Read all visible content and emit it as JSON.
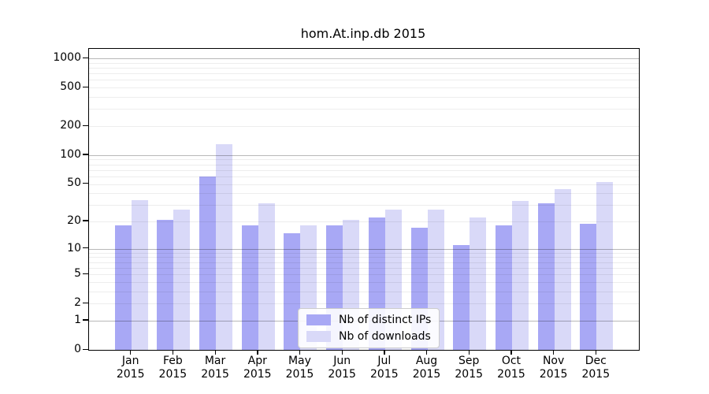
{
  "title": "hom.At.inp.db 2015",
  "chart_data": {
    "type": "bar",
    "title": "hom.At.inp.db 2015",
    "yscale": "log1p",
    "grid": "horizontal, major and minor",
    "legend_position": "lower center",
    "x_months": [
      "Jan",
      "Feb",
      "Mar",
      "Apr",
      "May",
      "Jun",
      "Jul",
      "Aug",
      "Sep",
      "Oct",
      "Nov",
      "Dec"
    ],
    "x_year": "2015",
    "ytick_values": [
      1000,
      500,
      200,
      100,
      50,
      20,
      10,
      5,
      2,
      1,
      0
    ],
    "ylim": [
      0,
      1250
    ],
    "series": [
      {
        "name": "Nb of distinct IPs",
        "color": "#a8a8f5",
        "values": [
          18,
          21,
          60,
          18,
          15,
          18,
          22,
          17,
          11,
          18,
          31,
          19
        ]
      },
      {
        "name": "Nb of downloads",
        "color": "#d9d9f8",
        "values": [
          34,
          27,
          130,
          31,
          18,
          21,
          27,
          27,
          22,
          33,
          44,
          52
        ]
      }
    ]
  }
}
